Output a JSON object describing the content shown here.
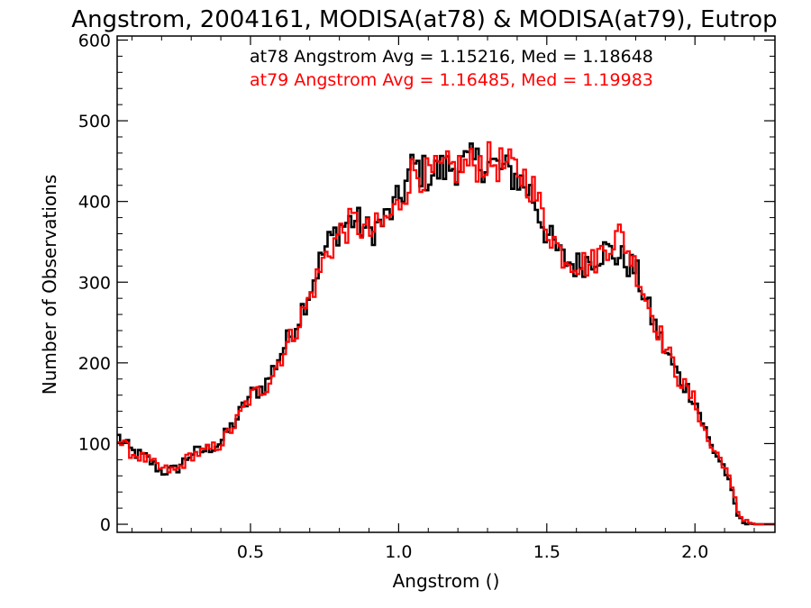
{
  "chart_data": {
    "type": "line",
    "title": "Angstrom, 2004161, MODISA(at78) & MODISA(at79), Eutrop",
    "xlabel": "Angstrom ()",
    "ylabel": "Number of Observations",
    "xlim": [
      0.05,
      2.27
    ],
    "ylim": [
      -10,
      605
    ],
    "xticks": [
      0.5,
      1.0,
      1.5,
      2.0
    ],
    "xtick_labels": [
      "0.5",
      "1.0",
      "1.5",
      "2.0"
    ],
    "yticks": [
      0,
      100,
      200,
      300,
      400,
      500,
      600
    ],
    "ytick_labels": [
      "0",
      "100",
      "200",
      "300",
      "400",
      "500",
      "600"
    ],
    "grid": false,
    "annotations": [
      {
        "text": "at78 Angstrom Avg = 1.15216, Med = 1.18648",
        "color": "#000000"
      },
      {
        "text": "at79 Angstrom Avg = 1.16485, Med = 1.19983",
        "color": "#ff0000"
      }
    ],
    "step_width": 0.01,
    "series": [
      {
        "color": "#000000",
        "x": [
          0.05,
          0.1,
          0.15,
          0.2,
          0.25,
          0.3,
          0.35,
          0.4,
          0.45,
          0.5,
          0.55,
          0.6,
          0.65,
          0.7,
          0.75,
          0.8,
          0.85,
          0.9,
          0.95,
          1.0,
          1.05,
          1.1,
          1.15,
          1.2,
          1.25,
          1.3,
          1.35,
          1.4,
          1.45,
          1.5,
          1.55,
          1.6,
          1.65,
          1.7,
          1.75,
          1.8,
          1.85,
          1.9,
          1.95,
          2.0,
          2.05,
          2.1,
          2.15,
          2.2,
          2.27
        ],
        "values": [
          110,
          90,
          82,
          65,
          68,
          88,
          92,
          102,
          128,
          160,
          172,
          210,
          245,
          290,
          340,
          368,
          378,
          362,
          375,
          400,
          445,
          432,
          440,
          445,
          448,
          448,
          440,
          430,
          410,
          360,
          330,
          320,
          330,
          340,
          330,
          315,
          260,
          215,
          180,
          155,
          100,
          70,
          5,
          0,
          0
        ]
      },
      {
        "color": "#ff0000",
        "x": [
          0.05,
          0.1,
          0.15,
          0.2,
          0.25,
          0.3,
          0.35,
          0.4,
          0.45,
          0.5,
          0.55,
          0.6,
          0.65,
          0.7,
          0.75,
          0.8,
          0.85,
          0.9,
          0.95,
          1.0,
          1.05,
          1.1,
          1.15,
          1.2,
          1.25,
          1.3,
          1.35,
          1.4,
          1.45,
          1.5,
          1.55,
          1.6,
          1.65,
          1.7,
          1.75,
          1.8,
          1.85,
          1.9,
          1.95,
          2.0,
          2.05,
          2.1,
          2.15,
          2.2,
          2.27
        ],
        "values": [
          105,
          88,
          80,
          68,
          66,
          86,
          90,
          100,
          125,
          158,
          170,
          205,
          240,
          280,
          330,
          360,
          375,
          360,
          372,
          395,
          440,
          430,
          438,
          442,
          446,
          450,
          445,
          438,
          420,
          370,
          335,
          325,
          322,
          345,
          360,
          318,
          265,
          220,
          178,
          152,
          98,
          75,
          10,
          0,
          0
        ]
      }
    ]
  }
}
